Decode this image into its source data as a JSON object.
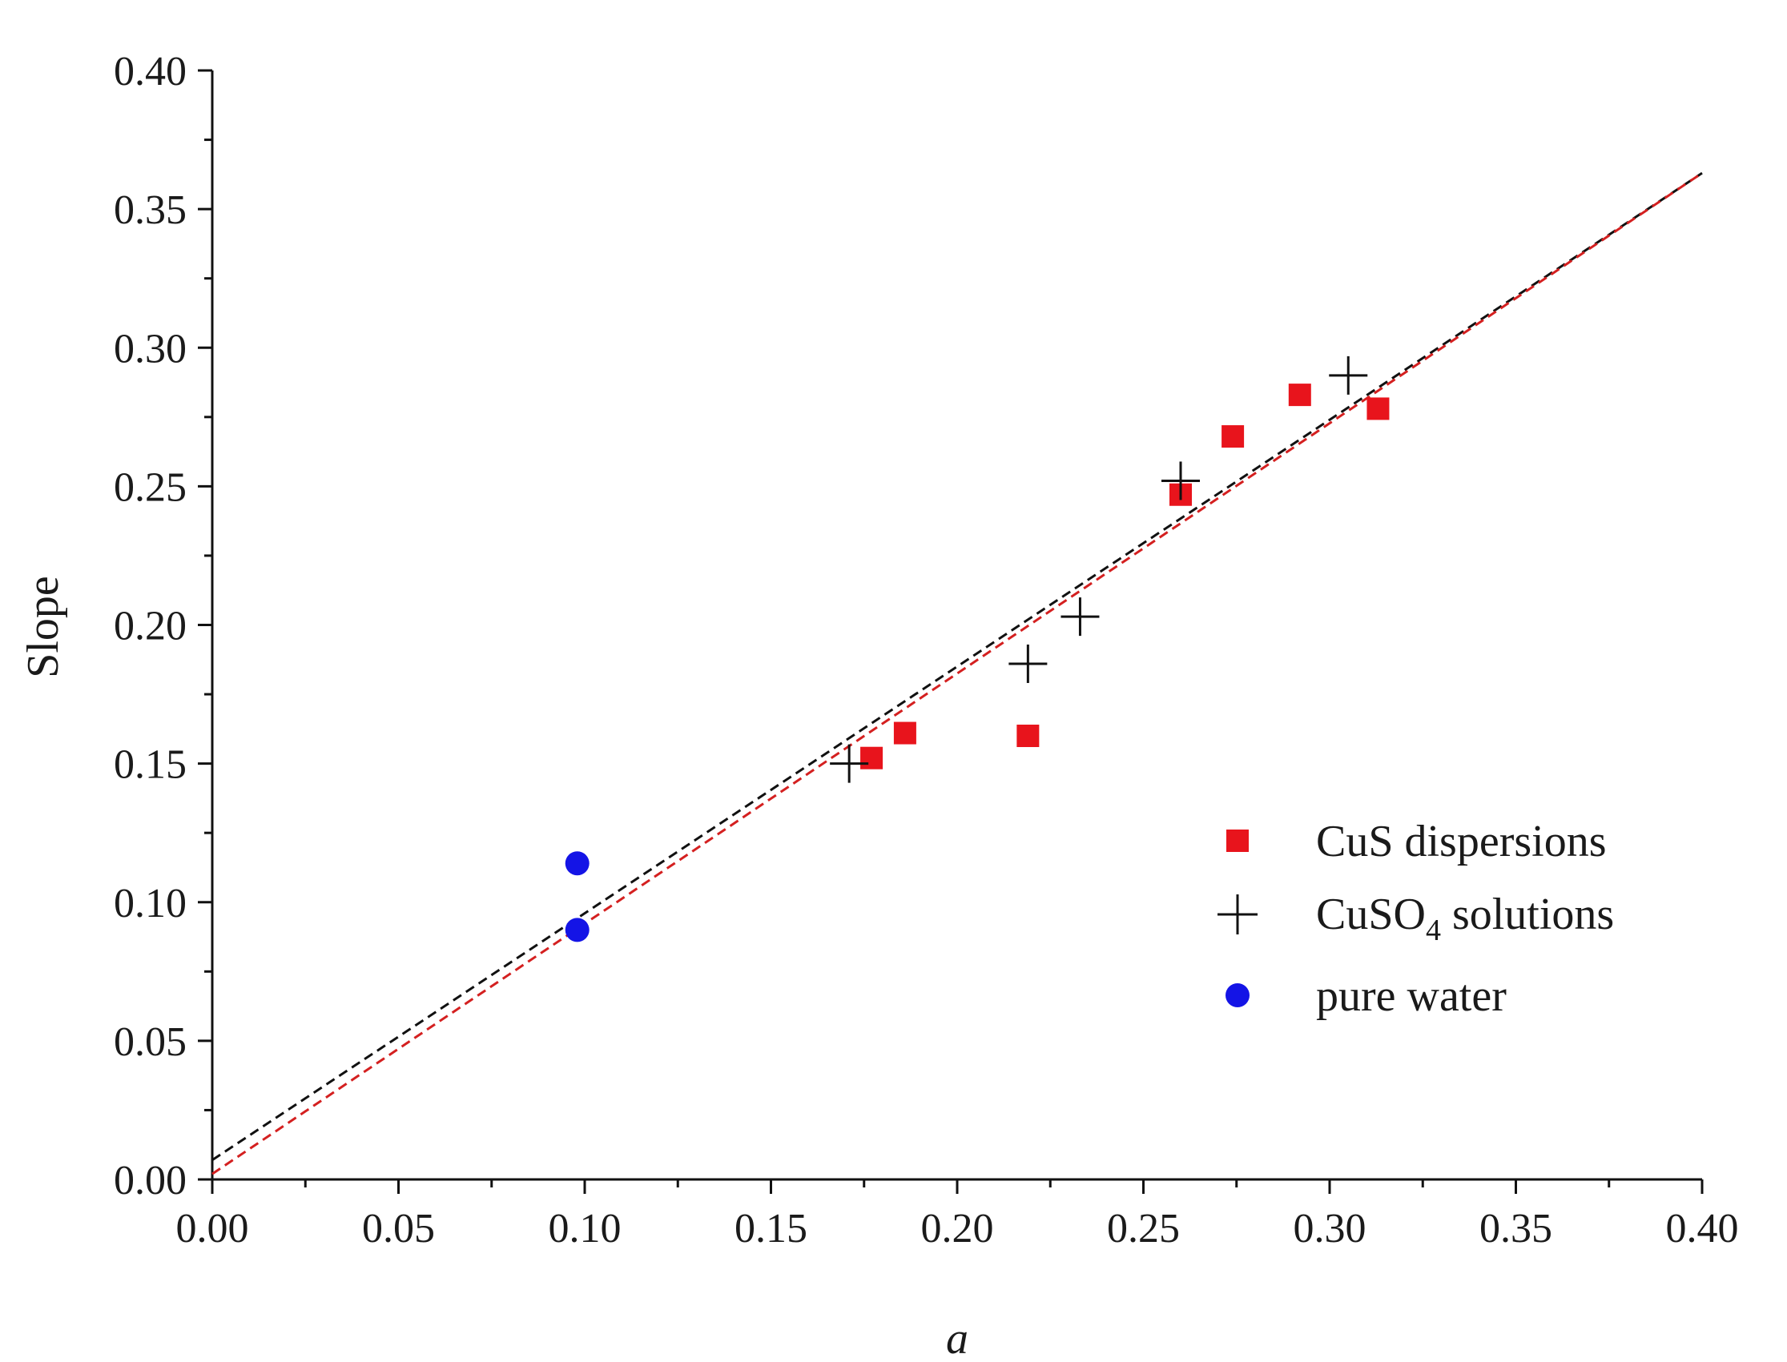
{
  "chart_data": {
    "type": "scatter",
    "title": "",
    "xlabel": "a",
    "ylabel": "Slope",
    "xlim": [
      0.0,
      0.4
    ],
    "ylim": [
      0.0,
      0.4
    ],
    "xticks": [
      "0.00",
      "0.05",
      "0.10",
      "0.15",
      "0.20",
      "0.25",
      "0.30",
      "0.35",
      "0.40"
    ],
    "yticks": [
      "0.00",
      "0.05",
      "0.10",
      "0.15",
      "0.20",
      "0.25",
      "0.30",
      "0.35",
      "0.40"
    ],
    "grid": false,
    "legend_position": "bottom-right",
    "series": [
      {
        "name": "CuS dispersions",
        "marker": "square",
        "color": "#e8141c",
        "points": [
          {
            "x": 0.177,
            "y": 0.152
          },
          {
            "x": 0.186,
            "y": 0.161
          },
          {
            "x": 0.219,
            "y": 0.16
          },
          {
            "x": 0.26,
            "y": 0.247
          },
          {
            "x": 0.274,
            "y": 0.268
          },
          {
            "x": 0.292,
            "y": 0.283
          },
          {
            "x": 0.313,
            "y": 0.278
          }
        ]
      },
      {
        "name": "CuSO4 solutions",
        "legend_base": "CuSO",
        "legend_sub": "4",
        "legend_rest": " solutions",
        "marker": "plus",
        "color": "#111111",
        "points": [
          {
            "x": 0.171,
            "y": 0.15
          },
          {
            "x": 0.219,
            "y": 0.186
          },
          {
            "x": 0.233,
            "y": 0.203
          },
          {
            "x": 0.26,
            "y": 0.252
          },
          {
            "x": 0.305,
            "y": 0.29
          }
        ]
      },
      {
        "name": "pure water",
        "marker": "circle",
        "color": "#1414e6",
        "points": [
          {
            "x": 0.098,
            "y": 0.114
          },
          {
            "x": 0.098,
            "y": 0.09
          }
        ]
      }
    ],
    "fit_lines": [
      {
        "name": "fit-black",
        "color": "#111111",
        "dash": "dashed",
        "x": [
          0.0,
          0.4
        ],
        "y": [
          0.007,
          0.363
        ]
      },
      {
        "name": "fit-red",
        "color": "#d42020",
        "dash": "dashed",
        "x": [
          0.0,
          0.4
        ],
        "y": [
          0.002,
          0.363
        ]
      }
    ]
  }
}
